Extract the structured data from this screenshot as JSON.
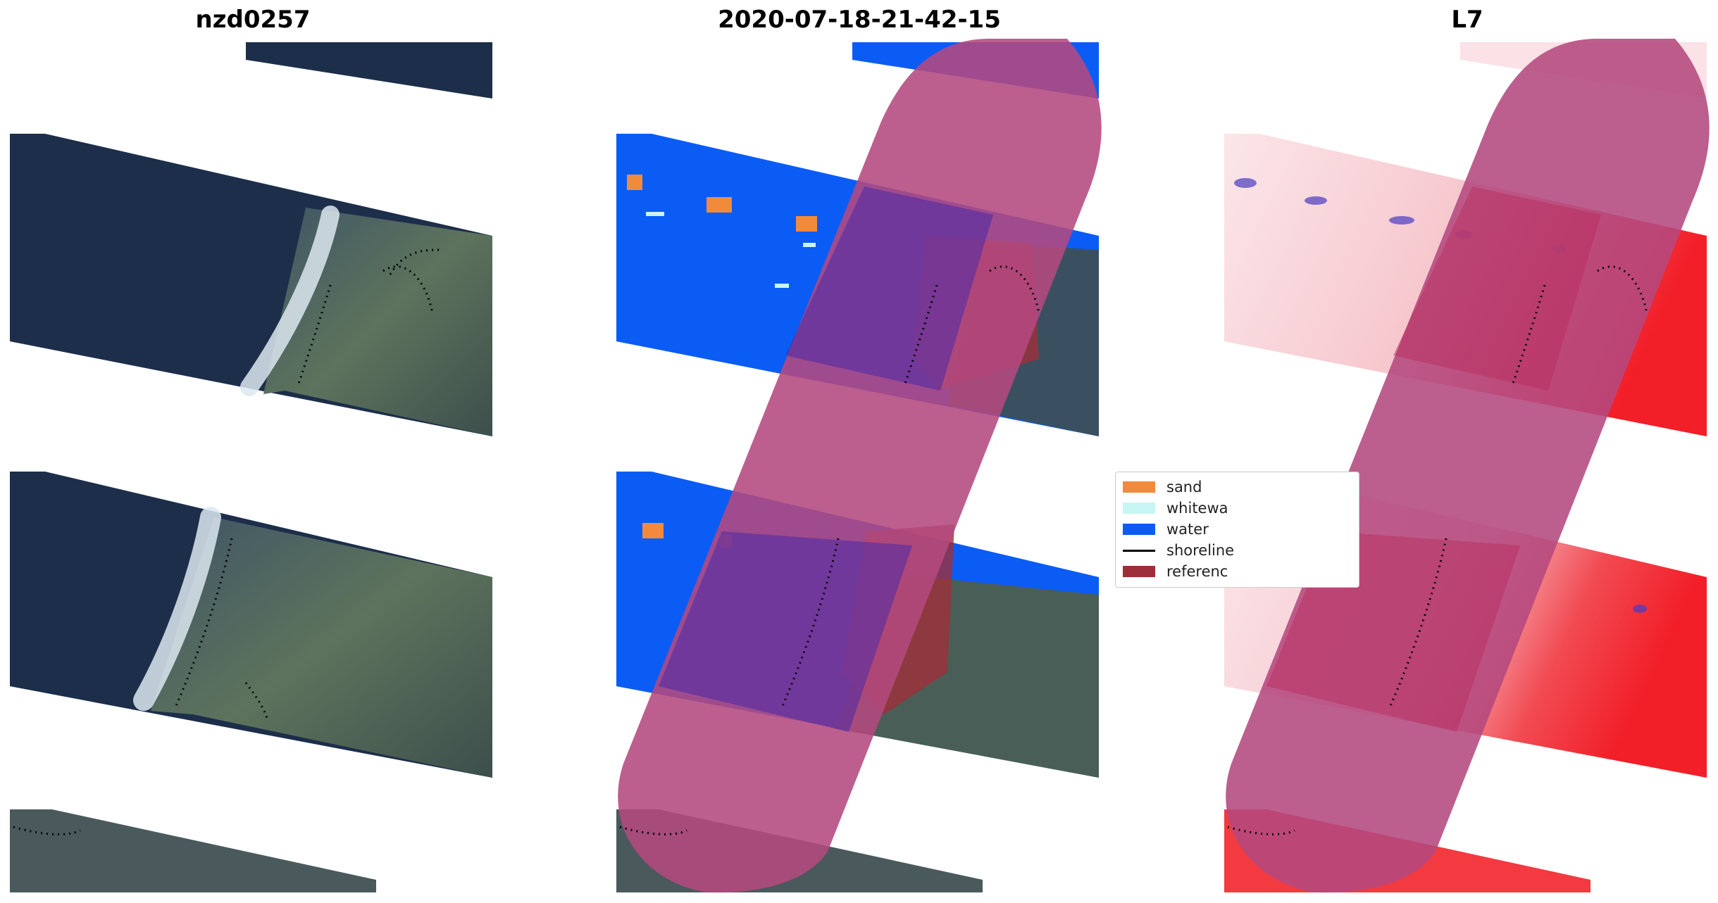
{
  "panels": [
    {
      "title": "nzd0257"
    },
    {
      "title": "2020-07-18-21-42-15"
    },
    {
      "title": "L7"
    }
  ],
  "legend": {
    "items": [
      {
        "label": "sand",
        "color": "#f28a3c",
        "kind": "patch"
      },
      {
        "label": "whitewa",
        "color": "#c8f6f4",
        "kind": "patch"
      },
      {
        "label": "water",
        "color": "#0a5cf5",
        "kind": "patch"
      },
      {
        "label": "shoreline",
        "color": "#000000",
        "kind": "line"
      },
      {
        "label": "referenc",
        "color": "#9e2f3a",
        "kind": "patch"
      }
    ]
  },
  "colors": {
    "dark_water": "#1c2e4a",
    "land_green": "#566a56",
    "surf_white": "#dde6ee",
    "class_water": "#0a5cf5",
    "overlay_magenta": "#b4497e",
    "index_red": "#f21e28",
    "index_blue": "#4a3cc0"
  }
}
